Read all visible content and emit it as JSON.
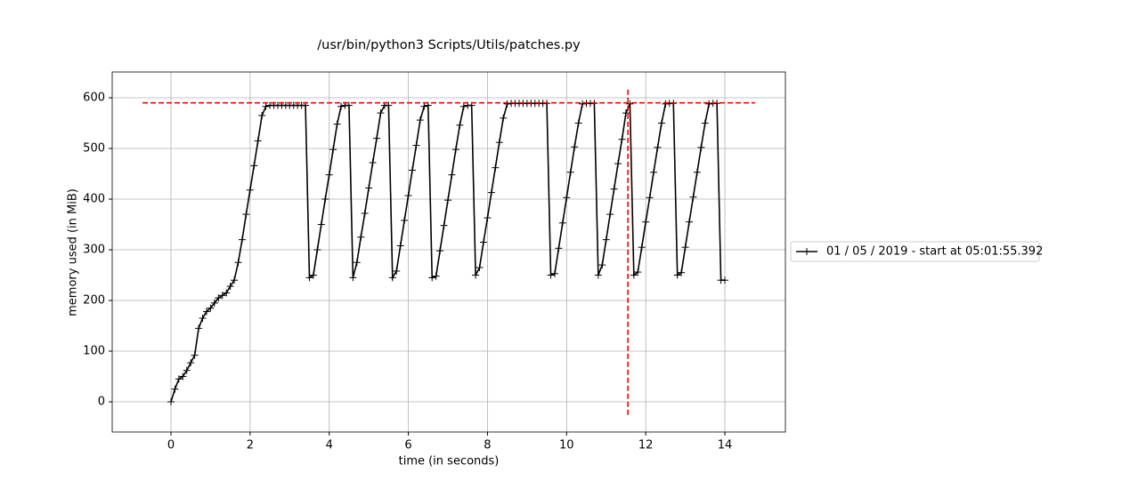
{
  "chart_data": {
    "type": "line",
    "title": "/usr/bin/python3 Scripts/Utils/patches.py",
    "xlabel": "time (in seconds)",
    "ylabel": "memory used (in MiB)",
    "x": [
      0,
      0.1,
      0.2,
      0.3,
      0.4,
      0.5,
      0.6,
      0.7,
      0.8,
      0.9,
      1,
      1.1,
      1.2,
      1.3,
      1.4,
      1.5,
      1.6,
      1.7,
      1.8,
      1.9,
      2,
      2.1,
      2.2,
      2.3,
      2.4,
      2.5,
      2.6,
      2.7,
      2.8,
      2.9,
      3,
      3.1,
      3.2,
      3.3,
      3.4,
      3.5,
      3.6,
      3.7,
      3.8,
      3.9,
      4,
      4.1,
      4.2,
      4.3,
      4.4,
      4.5,
      4.6,
      4.7,
      4.8,
      4.9,
      5,
      5.1,
      5.2,
      5.3,
      5.4,
      5.5,
      5.6,
      5.7,
      5.8,
      5.9,
      6,
      6.1,
      6.2,
      6.3,
      6.4,
      6.5,
      6.6,
      6.7,
      6.8,
      6.9,
      7,
      7.1,
      7.2,
      7.3,
      7.4,
      7.5,
      7.6,
      7.7,
      7.8,
      7.9,
      8,
      8.1,
      8.2,
      8.3,
      8.4,
      8.5,
      8.6,
      8.7,
      8.8,
      8.9,
      9,
      9.1,
      9.2,
      9.3,
      9.4,
      9.5,
      9.6,
      9.7,
      9.8,
      9.9,
      10,
      10.1,
      10.2,
      10.3,
      10.4,
      10.5,
      10.6,
      10.7,
      10.8,
      10.9,
      11,
      11.1,
      11.2,
      11.3,
      11.4,
      11.5,
      11.6,
      11.7,
      11.8,
      11.9,
      12,
      12.1,
      12.2,
      12.3,
      12.4,
      12.5,
      12.6,
      12.7,
      12.8,
      12.9,
      13,
      13.1,
      13.2,
      13.3,
      13.4,
      13.5,
      13.6,
      13.7,
      13.8,
      13.9,
      14
    ],
    "series": [
      {
        "name": "01 / 05 / 2019 - start at 05:01:55.392",
        "color": "#000000",
        "marker": "+",
        "values": [
          0,
          25,
          45,
          50,
          62,
          77,
          92,
          145,
          165,
          178,
          185,
          195,
          205,
          210,
          215,
          228,
          240,
          275,
          320,
          370,
          418,
          466,
          515,
          565,
          583,
          585,
          585,
          585,
          585,
          585,
          585,
          585,
          585,
          585,
          585,
          245,
          250,
          300,
          350,
          400,
          448,
          498,
          548,
          583,
          585,
          585,
          245,
          275,
          325,
          372,
          422,
          472,
          520,
          570,
          585,
          585,
          245,
          258,
          308,
          358,
          407,
          457,
          506,
          556,
          583,
          585,
          245,
          248,
          298,
          348,
          398,
          448,
          498,
          546,
          583,
          585,
          585,
          250,
          265,
          315,
          363,
          413,
          462,
          512,
          560,
          588,
          589,
          589,
          589,
          589,
          589,
          589,
          589,
          589,
          589,
          589,
          250,
          253,
          303,
          353,
          403,
          453,
          503,
          550,
          588,
          589,
          589,
          589,
          250,
          270,
          320,
          370,
          420,
          470,
          518,
          570,
          588,
          250,
          256,
          305,
          355,
          403,
          453,
          502,
          550,
          588,
          589,
          589,
          250,
          255,
          305,
          355,
          404,
          453,
          502,
          550,
          588,
          589,
          589,
          240,
          240
        ]
      }
    ],
    "max_hline": {
      "y": 590,
      "xmin": -0.72,
      "xmax": 14.76,
      "color": "#ff0000"
    },
    "max_vline": {
      "x": 11.55,
      "ymin": -26,
      "ymax": 619,
      "color": "#ff0000"
    },
    "xlim": [
      -1.485,
      15.53
    ],
    "ylim": [
      -59.6,
      650.9
    ],
    "xticks": [
      0,
      2,
      4,
      6,
      8,
      10,
      12,
      14
    ],
    "yticks": [
      0,
      100,
      200,
      300,
      400,
      500,
      600
    ],
    "grid": true,
    "legend": "right"
  }
}
